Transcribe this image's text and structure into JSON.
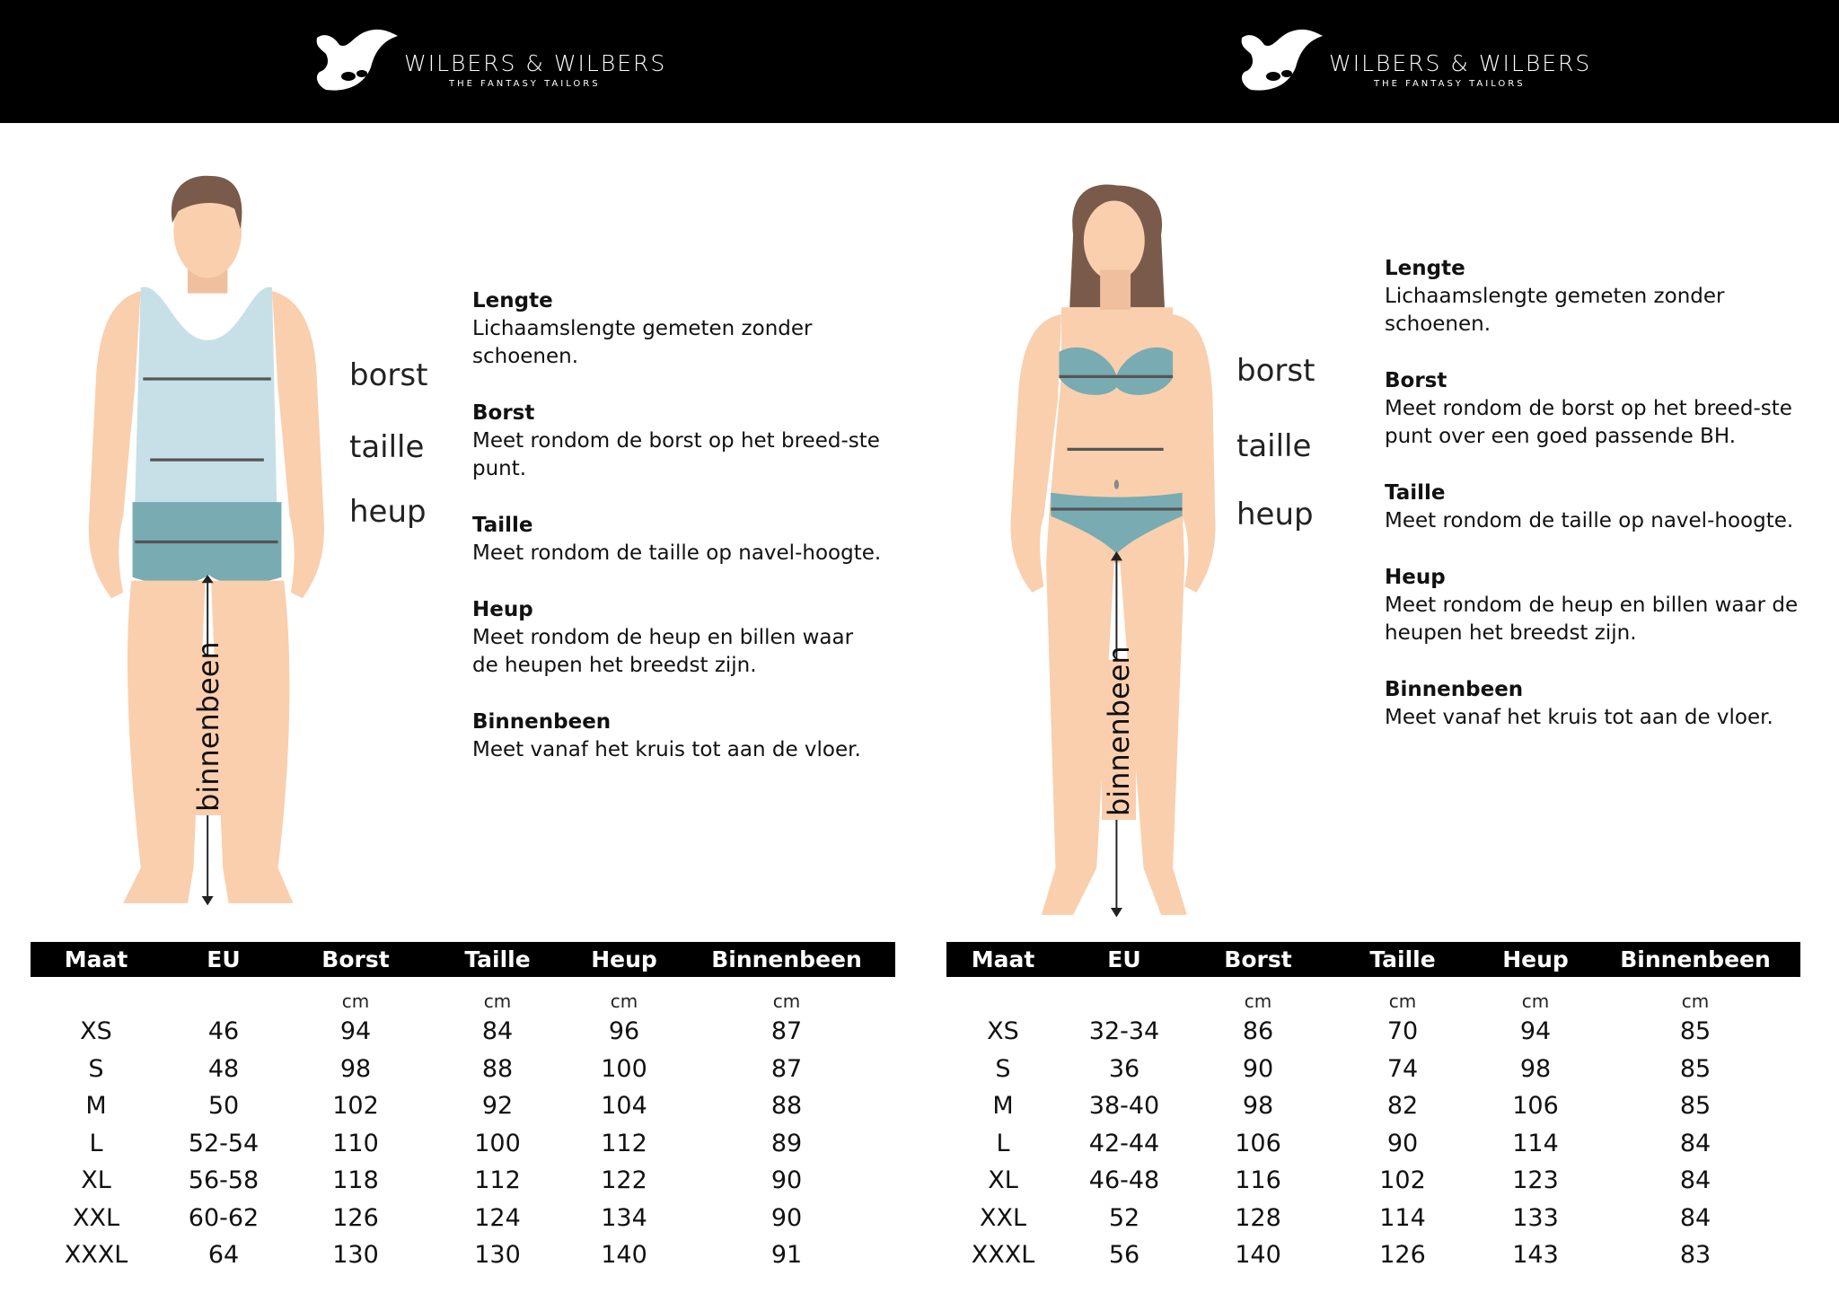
{
  "header": {
    "logo_left": {
      "brand": "WILBERS & WILBERS",
      "tagline": "THE FANTASY TAILORS"
    },
    "logo_right": {
      "brand": "WILBERS & WILBERS",
      "tagline": "THE FANTASY TAILORS"
    }
  },
  "colors": {
    "skin": "#f9cfae",
    "shirt": "#c7e0e8",
    "shorts": "#79abb2",
    "hair": "#7a5a4b",
    "header_bg": "#000000"
  },
  "men": {
    "figure_labels": {
      "borst": "borst",
      "taille": "taille",
      "heup": "heup",
      "binnenbeen": "binnenbeen"
    },
    "info": [
      {
        "title": "Lengte",
        "text": "Lichaamslengte gemeten zonder schoenen."
      },
      {
        "title": "Borst",
        "text": "Meet rondom de borst op het breed-ste punt."
      },
      {
        "title": "Taille",
        "text": "Meet rondom de taille op navel-hoogte."
      },
      {
        "title": "Heup",
        "text": "Meet rondom de heup en billen waar de heupen het breedst zijn."
      },
      {
        "title": "Binnenbeen",
        "text": "Meet vanaf het kruis tot aan de vloer."
      }
    ],
    "table": {
      "headers": [
        "Maat",
        "EU",
        "Borst",
        "Taille",
        "Heup",
        "Binnenbeen"
      ],
      "units": [
        "",
        "",
        "cm",
        "cm",
        "cm",
        "cm"
      ],
      "rows": [
        [
          "XS",
          "46",
          "94",
          "84",
          "96",
          "87"
        ],
        [
          "S",
          "48",
          "98",
          "88",
          "100",
          "87"
        ],
        [
          "M",
          "50",
          "102",
          "92",
          "104",
          "88"
        ],
        [
          "L",
          "52-54",
          "110",
          "100",
          "112",
          "89"
        ],
        [
          "XL",
          "56-58",
          "118",
          "112",
          "122",
          "90"
        ],
        [
          "XXL",
          "60-62",
          "126",
          "124",
          "134",
          "90"
        ],
        [
          "XXXL",
          "64",
          "130",
          "130",
          "140",
          "91"
        ]
      ]
    }
  },
  "women": {
    "figure_labels": {
      "borst": "borst",
      "taille": "taille",
      "heup": "heup",
      "binnenbeen": "binnenbeen"
    },
    "info": [
      {
        "title": "Lengte",
        "text": "Lichaamslengte gemeten zonder schoenen."
      },
      {
        "title": "Borst",
        "text": "Meet rondom de borst op het breed-ste punt over een goed passende BH."
      },
      {
        "title": "Taille",
        "text": "Meet rondom de taille op navel-hoogte."
      },
      {
        "title": "Heup",
        "text": "Meet rondom de heup en billen waar de heupen het breedst zijn."
      },
      {
        "title": "Binnenbeen",
        "text": "Meet vanaf het kruis tot aan de vloer."
      }
    ],
    "table": {
      "headers": [
        "Maat",
        "EU",
        "Borst",
        "Taille",
        "Heup",
        "Binnenbeen"
      ],
      "units": [
        "",
        "",
        "cm",
        "cm",
        "cm",
        "cm"
      ],
      "rows": [
        [
          "XS",
          "32-34",
          "86",
          "70",
          "94",
          "85"
        ],
        [
          "S",
          "36",
          "90",
          "74",
          "98",
          "85"
        ],
        [
          "M",
          "38-40",
          "98",
          "82",
          "106",
          "85"
        ],
        [
          "L",
          "42-44",
          "106",
          "90",
          "114",
          "84"
        ],
        [
          "XL",
          "46-48",
          "116",
          "102",
          "123",
          "84"
        ],
        [
          "XXL",
          "52",
          "128",
          "114",
          "133",
          "84"
        ],
        [
          "XXXL",
          "56",
          "140",
          "126",
          "143",
          "83"
        ]
      ]
    }
  }
}
